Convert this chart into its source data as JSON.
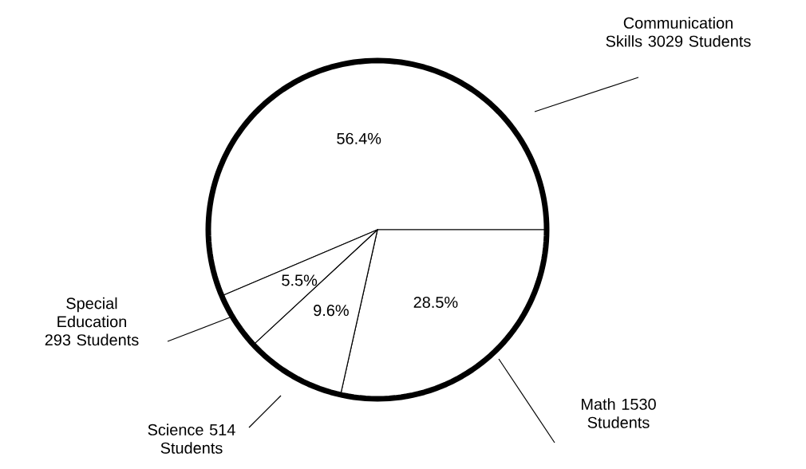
{
  "chart_data": {
    "type": "pie",
    "categories": [
      "Communication Skills 3029 Students",
      "Math 1530 Students",
      "Science 514 Students",
      "Special Education 293 Students"
    ],
    "values": [
      56.4,
      28.5,
      9.6,
      5.5
    ],
    "value_labels": [
      "56.4%",
      "28.5%",
      "9.6%",
      "5.5%"
    ],
    "colors": [
      "#ffffff",
      "#ffffff",
      "#ffffff",
      "#ffffff"
    ]
  }
}
